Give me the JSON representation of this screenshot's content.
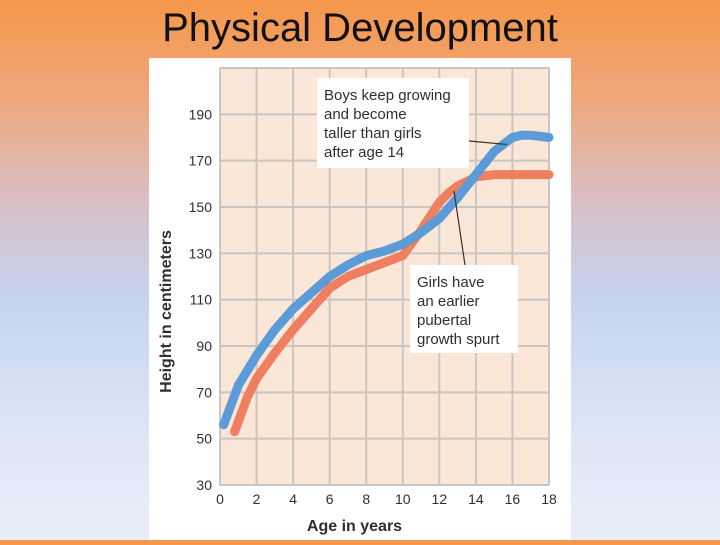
{
  "slide": {
    "title": "Physical Development"
  },
  "colors": {
    "plot_bg": "#fbe7d7",
    "grid": "#c9c5c2",
    "boys": "#5b9bd8",
    "girls": "#ef7f61",
    "annotation_bg": "#ffffff",
    "text": "#2f2f2f"
  },
  "chart_data": {
    "type": "line",
    "xlabel": "Age in years",
    "ylabel": "Height in centimeters",
    "xlim": [
      0,
      18
    ],
    "ylim": [
      30,
      210
    ],
    "x_ticks": [
      0,
      2,
      4,
      6,
      8,
      10,
      12,
      14,
      16,
      18
    ],
    "y_ticks": [
      30,
      50,
      70,
      90,
      110,
      130,
      150,
      170,
      190
    ],
    "grid": true,
    "series": [
      {
        "name": "Boys",
        "x": [
          0.2,
          1,
          2,
          3,
          4,
          5,
          6,
          7,
          8,
          9,
          10,
          11,
          12,
          13,
          14,
          15,
          16,
          16.5,
          17,
          18
        ],
        "y": [
          56,
          73,
          86,
          97,
          106,
          113,
          120,
          125,
          129,
          131,
          134,
          139,
          145,
          154,
          164,
          174,
          180,
          181,
          181,
          180
        ]
      },
      {
        "name": "Girls",
        "x": [
          0.8,
          1.5,
          2,
          3,
          4,
          5,
          6,
          7,
          8,
          9,
          10,
          11,
          12,
          12.5,
          13,
          14,
          15,
          16,
          17,
          18
        ],
        "y": [
          53,
          68,
          76,
          87,
          97,
          106,
          115,
          120,
          123,
          126,
          129,
          140,
          152,
          156,
          159,
          163,
          164,
          164,
          164,
          164
        ]
      }
    ],
    "annotations": [
      {
        "lines": [
          "Boys keep growing",
          "and become",
          "taller than girls",
          "after age 14"
        ]
      },
      {
        "lines": [
          "Girls have",
          "an earlier",
          "pubertal",
          "growth spurt"
        ]
      }
    ]
  }
}
